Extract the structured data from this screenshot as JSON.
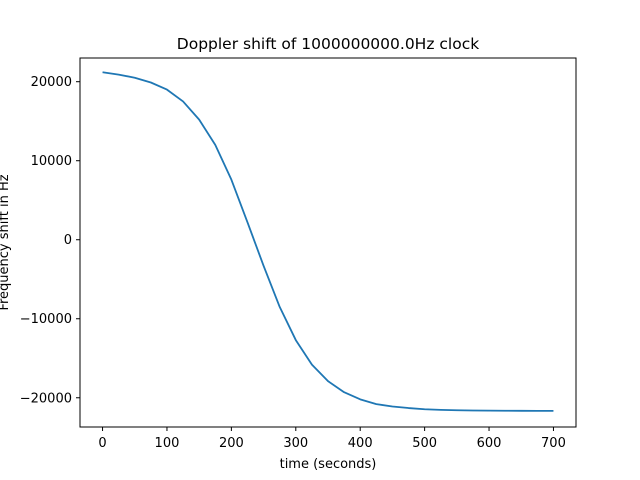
{
  "chart_data": {
    "type": "line",
    "title": "Doppler shift of 1000000000.0Hz clock",
    "xlabel": "time (seconds)",
    "ylabel": "Frequency shift in Hz",
    "xlim": [
      -35,
      735
    ],
    "ylim": [
      -23700,
      23000
    ],
    "xticks": [
      0,
      100,
      200,
      300,
      400,
      500,
      600,
      700
    ],
    "yticks": [
      -20000,
      -10000,
      0,
      10000,
      20000
    ],
    "xtick_labels": [
      "0",
      "100",
      "200",
      "300",
      "400",
      "500",
      "600",
      "700"
    ],
    "ytick_labels": [
      "−20000",
      "−10000",
      "0",
      "10000",
      "20000"
    ],
    "grid": false,
    "series": [
      {
        "name": "",
        "color": "#1f77b4",
        "x": [
          0,
          25,
          50,
          75,
          100,
          125,
          150,
          175,
          200,
          225,
          250,
          275,
          300,
          325,
          350,
          375,
          400,
          425,
          450,
          475,
          500,
          525,
          550,
          575,
          600,
          625,
          650,
          675,
          700
        ],
        "y": [
          21200,
          20900,
          20500,
          19900,
          19000,
          17500,
          15200,
          12000,
          7600,
          2200,
          -3300,
          -8500,
          -12700,
          -15800,
          -17900,
          -19300,
          -20200,
          -20800,
          -21100,
          -21300,
          -21450,
          -21530,
          -21580,
          -21610,
          -21630,
          -21640,
          -21650,
          -21655,
          -21660
        ]
      }
    ]
  }
}
